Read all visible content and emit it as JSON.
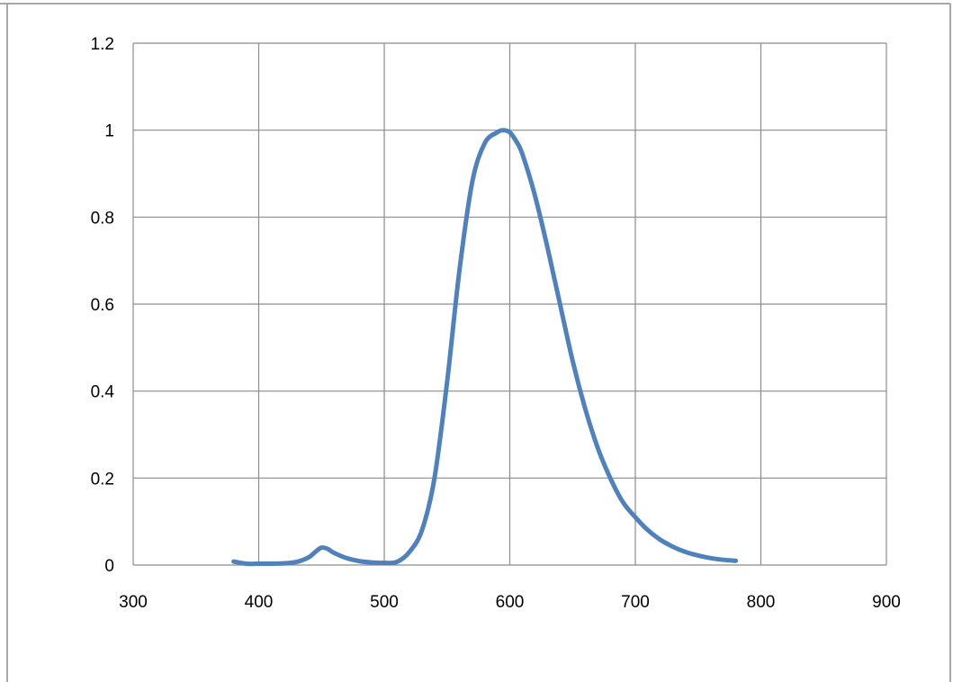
{
  "chart_data": {
    "type": "line",
    "title": "",
    "xlabel": "",
    "ylabel": "",
    "xlim": [
      300,
      900
    ],
    "ylim": [
      0,
      1.2
    ],
    "x_ticks": [
      "300",
      "400",
      "500",
      "600",
      "700",
      "800",
      "900"
    ],
    "y_ticks": [
      "0",
      "0.2",
      "0.4",
      "0.6",
      "0.8",
      "1",
      "1.2"
    ],
    "grid": true,
    "legend": "none",
    "series": [
      {
        "color": "#4f81bd",
        "x": [
          380,
          390,
          400,
          410,
          420,
          430,
          440,
          445,
          450,
          455,
          460,
          470,
          480,
          490,
          500,
          510,
          520,
          530,
          540,
          550,
          560,
          570,
          580,
          590,
          595,
          600,
          605,
          610,
          620,
          630,
          640,
          650,
          660,
          670,
          680,
          690,
          700,
          710,
          720,
          730,
          740,
          750,
          760,
          770,
          780
        ],
        "y": [
          0.008,
          0.003,
          0.003,
          0.003,
          0.004,
          0.007,
          0.018,
          0.03,
          0.04,
          0.037,
          0.028,
          0.016,
          0.009,
          0.006,
          0.005,
          0.007,
          0.03,
          0.08,
          0.2,
          0.42,
          0.68,
          0.88,
          0.97,
          0.995,
          1.0,
          0.995,
          0.975,
          0.945,
          0.85,
          0.73,
          0.6,
          0.47,
          0.36,
          0.27,
          0.2,
          0.145,
          0.11,
          0.08,
          0.058,
          0.042,
          0.03,
          0.022,
          0.016,
          0.012,
          0.01
        ]
      }
    ]
  },
  "colors": {
    "grid": "#8c8c8c",
    "frame": "#8c8c8c",
    "series": "#4f81bd"
  }
}
